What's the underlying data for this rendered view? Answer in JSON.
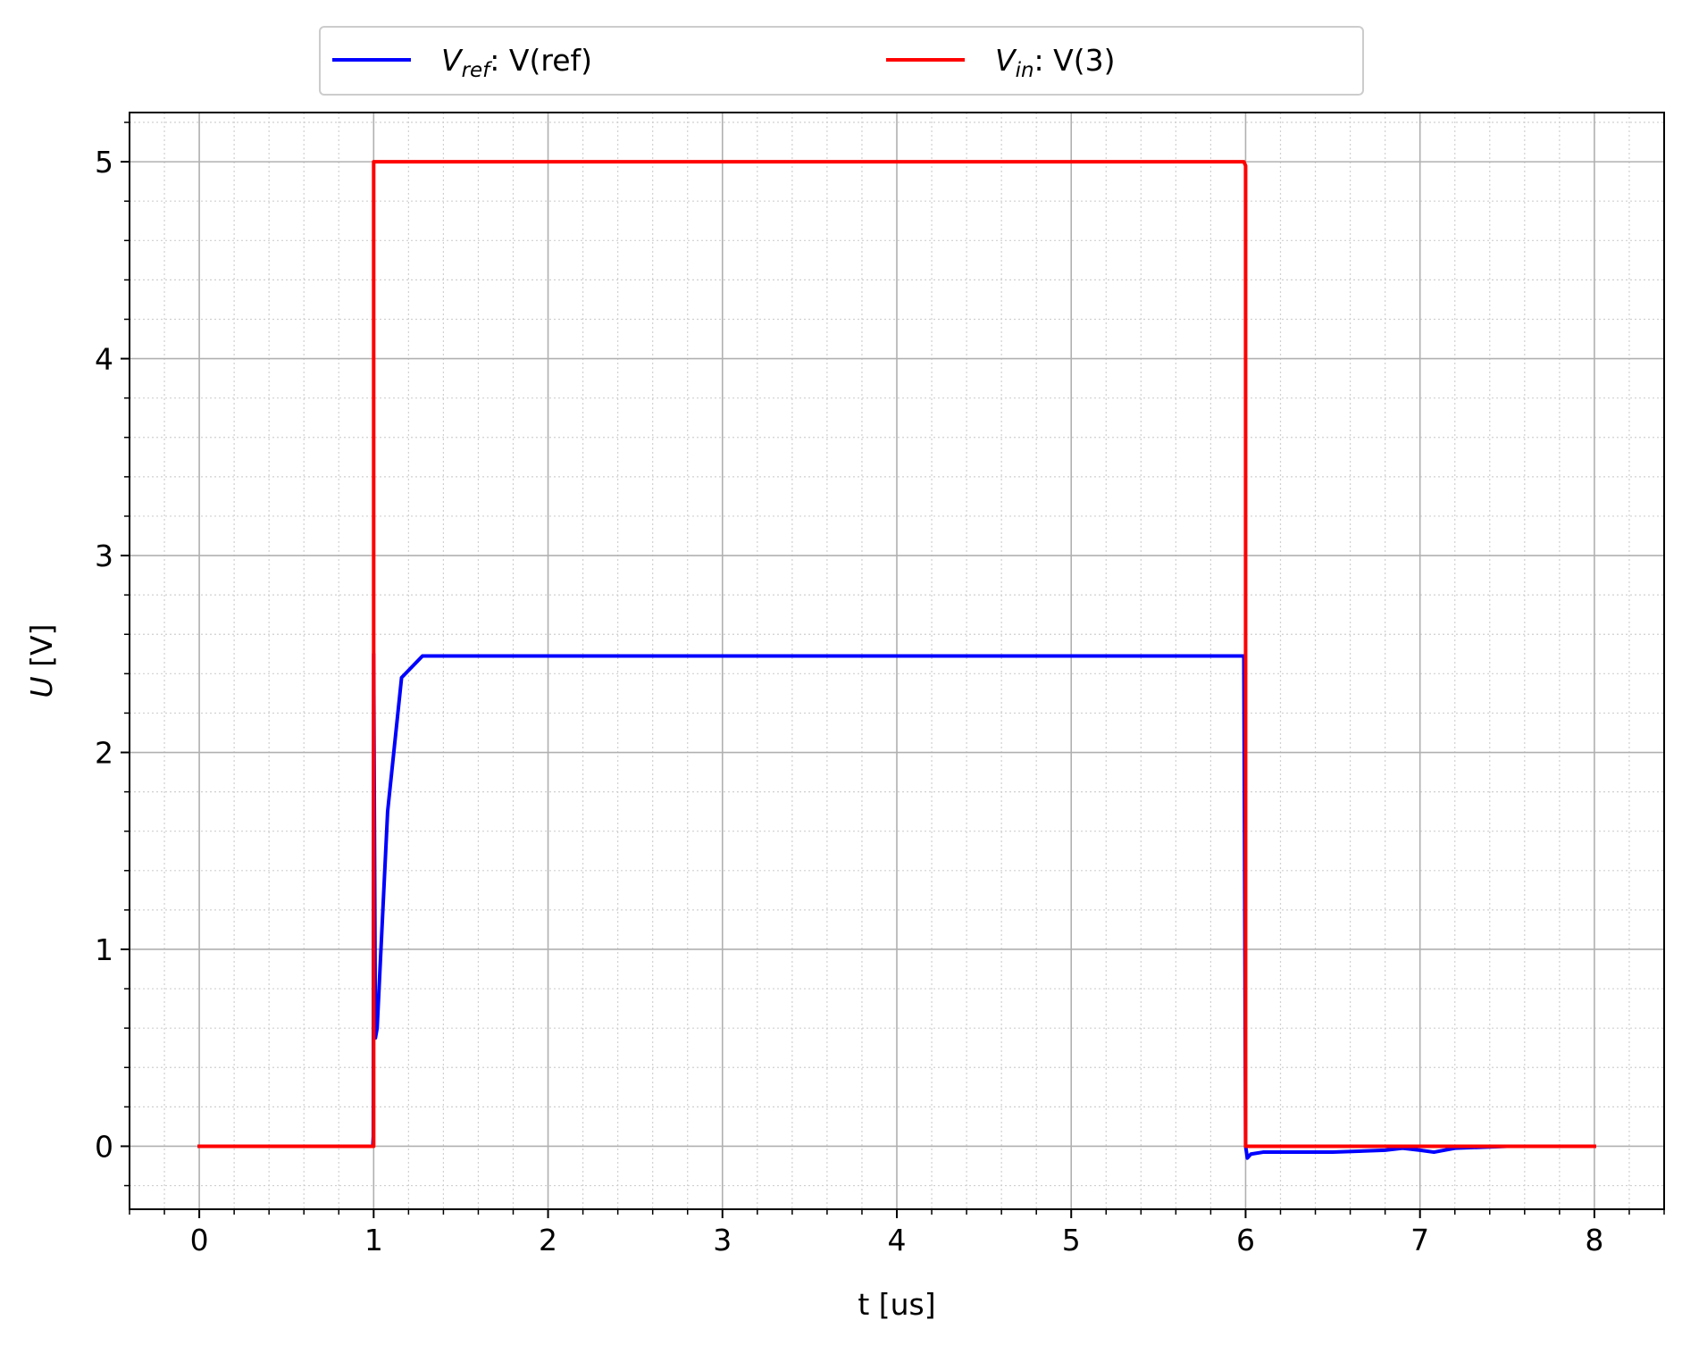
{
  "chart_data": {
    "type": "line",
    "title": "",
    "xlabel": "t [us]",
    "ylabel": "U [V]",
    "xlim": [
      -0.4,
      8.4
    ],
    "ylim": [
      -0.32,
      5.25
    ],
    "xticks": [
      0,
      1,
      2,
      3,
      4,
      5,
      6,
      7,
      8
    ],
    "yticks": [
      0,
      1,
      2,
      3,
      4,
      5
    ],
    "grid": true,
    "minor_grid": true,
    "legend": {
      "placement": "top-center, above plot",
      "columns": 2
    },
    "colors": {
      "vref": "#0000ff",
      "vin": "#ff0000"
    },
    "series": [
      {
        "key": "vref",
        "name_symbol": "V",
        "name_sub": "ref",
        "name_suffix": ":  V(ref)",
        "color": "#0000ff",
        "x": [
          0,
          0.995,
          0.998,
          1.0,
          1.01,
          1.02,
          1.08,
          1.16,
          1.28,
          2,
          3,
          4,
          5,
          5.99,
          6.0,
          6.01,
          6.03,
          6.1,
          6.5,
          6.8,
          6.9,
          7.0,
          7.08,
          7.2,
          7.5,
          7.8,
          8.0
        ],
        "y": [
          0,
          0,
          0.05,
          2.5,
          0.55,
          0.6,
          1.7,
          2.38,
          2.49,
          2.49,
          2.49,
          2.49,
          2.49,
          2.49,
          0.0,
          -0.06,
          -0.04,
          -0.03,
          -0.03,
          -0.02,
          -0.01,
          -0.02,
          -0.03,
          -0.01,
          0.0,
          0.0,
          0.0
        ]
      },
      {
        "key": "vin",
        "name_symbol": "V",
        "name_sub": "in",
        "name_suffix": ":  V(3)",
        "color": "#ff0000",
        "x": [
          0,
          1.0,
          1.0,
          5.99,
          6.0,
          6.0,
          8.0
        ],
        "y": [
          0,
          0,
          5,
          5,
          4.98,
          0,
          0
        ]
      }
    ]
  }
}
